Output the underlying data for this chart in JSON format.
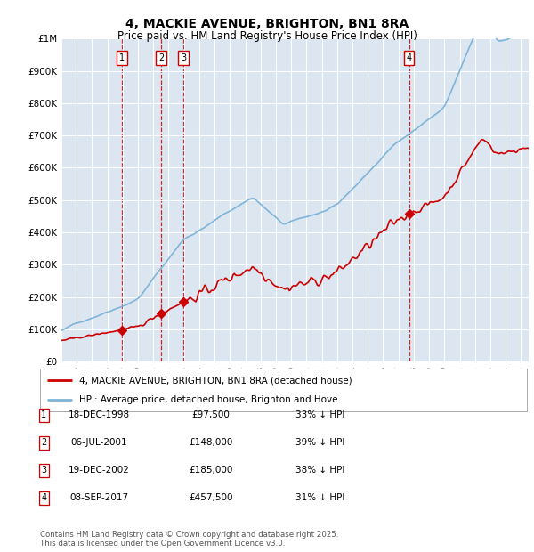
{
  "title": "4, MACKIE AVENUE, BRIGHTON, BN1 8RA",
  "subtitle": "Price paid vs. HM Land Registry's House Price Index (HPI)",
  "ylim": [
    0,
    1000000
  ],
  "yticks": [
    0,
    100000,
    200000,
    300000,
    400000,
    500000,
    600000,
    700000,
    800000,
    900000,
    1000000
  ],
  "ytick_labels": [
    "£0",
    "£100K",
    "£200K",
    "£300K",
    "£400K",
    "£500K",
    "£600K",
    "£700K",
    "£800K",
    "£900K",
    "£1M"
  ],
  "background_color": "#dce6f1",
  "grid_color": "#ffffff",
  "hpi_color": "#7fb4d8",
  "price_color": "#cc0000",
  "vline_color": "#cc0000",
  "sale_date_nums": [
    1998.962,
    2001.504,
    2002.962,
    2017.687
  ],
  "sale_prices": [
    97500,
    148000,
    185000,
    457500
  ],
  "sale_labels": [
    "1",
    "2",
    "3",
    "4"
  ],
  "legend_price_label": "4, MACKIE AVENUE, BRIGHTON, BN1 8RA (detached house)",
  "legend_hpi_label": "HPI: Average price, detached house, Brighton and Hove",
  "table_entries": [
    {
      "num": "1",
      "date": "18-DEC-1998",
      "price": "£97,500",
      "hpi": "33% ↓ HPI"
    },
    {
      "num": "2",
      "date": "06-JUL-2001",
      "price": "£148,000",
      "hpi": "39% ↓ HPI"
    },
    {
      "num": "3",
      "date": "19-DEC-2002",
      "price": "£185,000",
      "hpi": "38% ↓ HPI"
    },
    {
      "num": "4",
      "date": "08-SEP-2017",
      "price": "£457,500",
      "hpi": "31% ↓ HPI"
    }
  ],
  "footer": "Contains HM Land Registry data © Crown copyright and database right 2025.\nThis data is licensed under the Open Government Licence v3.0.",
  "title_fontsize": 10,
  "subtitle_fontsize": 8.5,
  "tick_fontsize": 7.5,
  "xstart": 1995,
  "xend": 2025.5
}
